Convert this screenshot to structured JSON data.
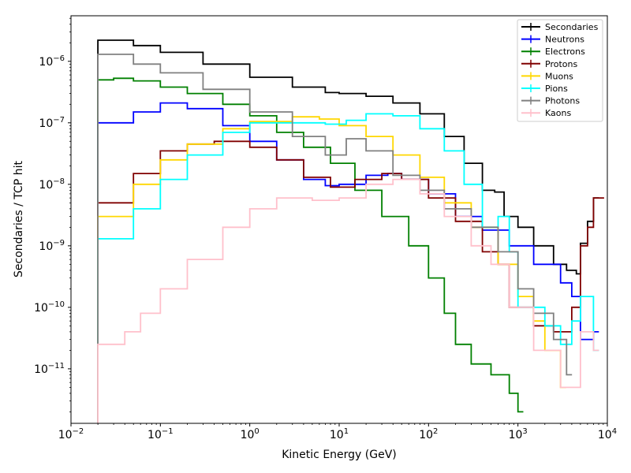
{
  "chart_data": {
    "type": "line",
    "title": "",
    "xlabel": "Kinetic Energy (GeV)",
    "ylabel": "Secondaries / TCP hit",
    "xscale": "log",
    "yscale": "log",
    "xlim": [
      0.01,
      10000
    ],
    "ylim": [
      1.3e-12,
      5.5e-06
    ],
    "grid": false,
    "legend_position": "top-right",
    "x_ticks": [
      {
        "base": "10",
        "exp": "−2",
        "value": 0.01
      },
      {
        "base": "10",
        "exp": "−1",
        "value": 0.1
      },
      {
        "base": "10",
        "exp": "0",
        "value": 1
      },
      {
        "base": "10",
        "exp": "1",
        "value": 10
      },
      {
        "base": "10",
        "exp": "2",
        "value": 100
      },
      {
        "base": "10",
        "exp": "3",
        "value": 1000
      },
      {
        "base": "10",
        "exp": "4",
        "value": 10000
      }
    ],
    "y_ticks": [
      {
        "base": "10",
        "exp": "−11",
        "value": 1e-11
      },
      {
        "base": "10",
        "exp": "−10",
        "value": 1e-10
      },
      {
        "base": "10",
        "exp": "−9",
        "value": 1e-09
      },
      {
        "base": "10",
        "exp": "−8",
        "value": 1e-08
      },
      {
        "base": "10",
        "exp": "−7",
        "value": 1e-07
      },
      {
        "base": "10",
        "exp": "−6",
        "value": 1e-06
      }
    ],
    "series": [
      {
        "name": "Secondaries",
        "color": "#000000",
        "points": [
          [
            0.02,
            2.2e-06
          ],
          [
            0.05,
            1.8e-06
          ],
          [
            0.1,
            1.4e-06
          ],
          [
            0.3,
            9e-07
          ],
          [
            1,
            5.5e-07
          ],
          [
            3,
            3.8e-07
          ],
          [
            7,
            3.1e-07
          ],
          [
            10,
            3e-07
          ],
          [
            20,
            2.7e-07
          ],
          [
            40,
            2.1e-07
          ],
          [
            80,
            1.4e-07
          ],
          [
            150,
            6e-08
          ],
          [
            250,
            2.2e-08
          ],
          [
            400,
            8e-09
          ],
          [
            550,
            7.5e-09
          ],
          [
            700,
            3e-09
          ],
          [
            1000,
            2e-09
          ],
          [
            1500,
            1e-09
          ],
          [
            2500,
            5e-10
          ],
          [
            3500,
            4e-10
          ],
          [
            4500,
            3.5e-10
          ],
          [
            5000,
            1.1e-09
          ],
          [
            6000,
            2.5e-09
          ],
          [
            7000,
            6e-09
          ]
        ]
      },
      {
        "name": "Neutrons",
        "color": "#0000ff",
        "points": [
          [
            0.02,
            1e-07
          ],
          [
            0.05,
            1.5e-07
          ],
          [
            0.1,
            2.1e-07
          ],
          [
            0.2,
            1.7e-07
          ],
          [
            0.5,
            9e-08
          ],
          [
            1,
            5e-08
          ],
          [
            2,
            2.5e-08
          ],
          [
            4,
            1.2e-08
          ],
          [
            7,
            9.5e-09
          ],
          [
            10,
            1e-08
          ],
          [
            20,
            1.4e-08
          ],
          [
            35,
            1.5e-08
          ],
          [
            50,
            1.2e-08
          ],
          [
            100,
            7e-09
          ],
          [
            200,
            3e-09
          ],
          [
            400,
            1.8e-09
          ],
          [
            800,
            1e-09
          ],
          [
            1500,
            5e-10
          ],
          [
            3000,
            2.5e-10
          ],
          [
            4000,
            1.5e-10
          ],
          [
            5000,
            3e-11
          ],
          [
            7000,
            4e-11
          ]
        ]
      },
      {
        "name": "Electrons",
        "color": "#008000",
        "points": [
          [
            0.02,
            5e-07
          ],
          [
            0.03,
            5.3e-07
          ],
          [
            0.05,
            4.8e-07
          ],
          [
            0.1,
            3.8e-07
          ],
          [
            0.2,
            3e-07
          ],
          [
            0.5,
            2e-07
          ],
          [
            1,
            1.3e-07
          ],
          [
            2,
            7e-08
          ],
          [
            4,
            4e-08
          ],
          [
            8,
            2.2e-08
          ],
          [
            15,
            8e-09
          ],
          [
            30,
            3e-09
          ],
          [
            60,
            1e-09
          ],
          [
            100,
            3e-10
          ],
          [
            150,
            8e-11
          ],
          [
            200,
            2.5e-11
          ],
          [
            300,
            1.2e-11
          ],
          [
            500,
            8e-12
          ],
          [
            800,
            4e-12
          ],
          [
            1000,
            2e-12
          ]
        ]
      },
      {
        "name": "Protons",
        "color": "#800000",
        "points": [
          [
            0.02,
            5e-09
          ],
          [
            0.05,
            1.5e-08
          ],
          [
            0.1,
            3.5e-08
          ],
          [
            0.2,
            4.5e-08
          ],
          [
            0.4,
            5e-08
          ],
          [
            1,
            4e-08
          ],
          [
            2,
            2.5e-08
          ],
          [
            4,
            1.3e-08
          ],
          [
            8,
            9e-09
          ],
          [
            15,
            1.2e-08
          ],
          [
            30,
            1.5e-08
          ],
          [
            50,
            1.2e-08
          ],
          [
            100,
            6e-09
          ],
          [
            200,
            2.5e-09
          ],
          [
            400,
            8e-10
          ],
          [
            600,
            5e-10
          ],
          [
            800,
            1e-10
          ],
          [
            1500,
            5e-11
          ],
          [
            2500,
            4e-11
          ],
          [
            4000,
            1e-10
          ],
          [
            5000,
            1e-09
          ],
          [
            6000,
            2e-09
          ],
          [
            7000,
            6e-09
          ],
          [
            8000,
            6e-09
          ]
        ]
      },
      {
        "name": "Muons",
        "color": "#ffd700",
        "points": [
          [
            0.02,
            3e-09
          ],
          [
            0.05,
            1e-08
          ],
          [
            0.1,
            2.5e-08
          ],
          [
            0.2,
            4.5e-08
          ],
          [
            0.5,
            8e-08
          ],
          [
            1,
            1.05e-07
          ],
          [
            3,
            1.25e-07
          ],
          [
            6,
            1.15e-07
          ],
          [
            10,
            9e-08
          ],
          [
            20,
            6e-08
          ],
          [
            40,
            3e-08
          ],
          [
            80,
            1.3e-08
          ],
          [
            150,
            5e-09
          ],
          [
            300,
            2e-09
          ],
          [
            600,
            5e-10
          ],
          [
            1000,
            1.5e-10
          ],
          [
            1500,
            6e-11
          ],
          [
            2000,
            2e-11
          ],
          [
            3000,
            5e-12
          ]
        ]
      },
      {
        "name": "Pions",
        "color": "#00ffff",
        "points": [
          [
            0.02,
            1.3e-09
          ],
          [
            0.05,
            4e-09
          ],
          [
            0.1,
            1.2e-08
          ],
          [
            0.2,
            3e-08
          ],
          [
            0.5,
            7e-08
          ],
          [
            1,
            1e-07
          ],
          [
            3,
            1e-07
          ],
          [
            7,
            9.5e-08
          ],
          [
            12,
            1.1e-07
          ],
          [
            20,
            1.4e-07
          ],
          [
            40,
            1.3e-07
          ],
          [
            80,
            8e-08
          ],
          [
            150,
            3.5e-08
          ],
          [
            250,
            1e-08
          ],
          [
            400,
            2e-09
          ],
          [
            600,
            3e-09
          ],
          [
            800,
            8e-10
          ],
          [
            1000,
            1e-10
          ],
          [
            2000,
            5e-11
          ],
          [
            3000,
            2.5e-11
          ],
          [
            4000,
            6e-11
          ],
          [
            5000,
            1.5e-10
          ],
          [
            7000,
            2e-11
          ]
        ]
      },
      {
        "name": "Photons",
        "color": "#808080",
        "points": [
          [
            0.02,
            1.3e-06
          ],
          [
            0.05,
            9e-07
          ],
          [
            0.1,
            6.5e-07
          ],
          [
            0.3,
            3.5e-07
          ],
          [
            1,
            1.5e-07
          ],
          [
            3,
            6e-08
          ],
          [
            7,
            3e-08
          ],
          [
            12,
            5.5e-08
          ],
          [
            20,
            3.5e-08
          ],
          [
            40,
            1.4e-08
          ],
          [
            80,
            8e-09
          ],
          [
            150,
            4e-09
          ],
          [
            300,
            2e-09
          ],
          [
            600,
            8e-10
          ],
          [
            1000,
            2e-10
          ],
          [
            1500,
            8e-11
          ],
          [
            2500,
            3e-11
          ],
          [
            3500,
            8e-12
          ]
        ]
      },
      {
        "name": "Kaons",
        "color": "#ffc0cb",
        "points": [
          [
            0.02,
            2.5e-11
          ],
          [
            0.04,
            4e-11
          ],
          [
            0.06,
            8e-11
          ],
          [
            0.1,
            2e-10
          ],
          [
            0.2,
            6e-10
          ],
          [
            0.5,
            2e-09
          ],
          [
            1,
            4e-09
          ],
          [
            2,
            6e-09
          ],
          [
            5,
            5.5e-09
          ],
          [
            10,
            6e-09
          ],
          [
            20,
            1e-08
          ],
          [
            40,
            1.2e-08
          ],
          [
            80,
            7e-09
          ],
          [
            150,
            3e-09
          ],
          [
            300,
            1e-09
          ],
          [
            500,
            5e-10
          ],
          [
            800,
            1e-10
          ],
          [
            1500,
            2e-11
          ],
          [
            3000,
            5e-12
          ],
          [
            5000,
            4e-11
          ],
          [
            7000,
            2e-11
          ]
        ]
      }
    ]
  }
}
